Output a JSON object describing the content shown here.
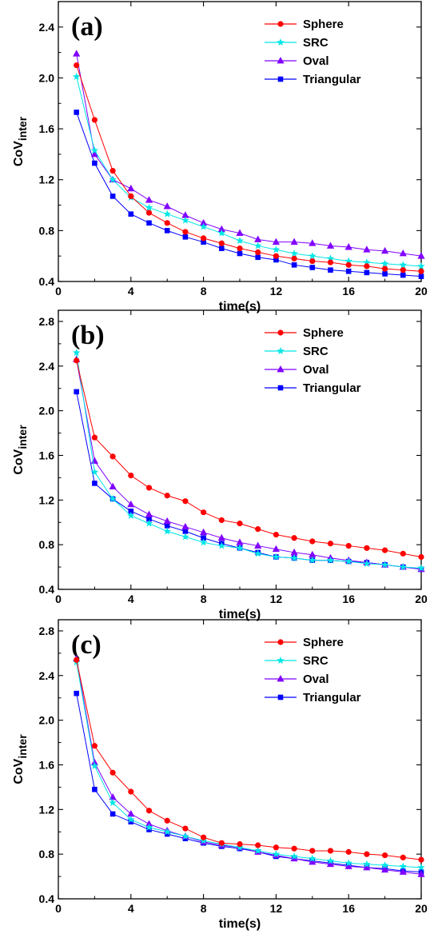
{
  "chart_data": [
    {
      "type": "line",
      "panel_label": "(a)",
      "xlabel": "time(s)",
      "ylabel_main": "CoV",
      "ylabel_sub": "inter",
      "xlim": [
        0,
        20
      ],
      "ylim": [
        0.4,
        2.6
      ],
      "xticks": [
        0,
        4,
        8,
        12,
        16,
        20
      ],
      "yticks": [
        0.4,
        0.8,
        1.2,
        1.6,
        2.0,
        2.4
      ],
      "xtick_labels": [
        "0",
        "4",
        "8",
        "12",
        "16",
        "20"
      ],
      "ytick_labels": [
        "0.4",
        "0.8",
        "1.2",
        "1.6",
        "2.0",
        "2.4"
      ],
      "legend_position": "top-right",
      "x": [
        1,
        2,
        3,
        4,
        5,
        6,
        7,
        8,
        9,
        10,
        11,
        12,
        13,
        14,
        15,
        16,
        17,
        18,
        19,
        20
      ],
      "series": [
        {
          "name": "Sphere",
          "color": "#ff0000",
          "marker": "circle",
          "values": [
            2.1,
            1.67,
            1.27,
            1.07,
            0.94,
            0.86,
            0.79,
            0.74,
            0.7,
            0.66,
            0.63,
            0.6,
            0.58,
            0.56,
            0.55,
            0.53,
            0.52,
            0.5,
            0.49,
            0.48
          ]
        },
        {
          "name": "SRC",
          "color": "#00e6e6",
          "marker": "star",
          "values": [
            2.01,
            1.43,
            1.2,
            1.06,
            0.98,
            0.93,
            0.88,
            0.83,
            0.78,
            0.72,
            0.68,
            0.65,
            0.62,
            0.6,
            0.58,
            0.56,
            0.55,
            0.54,
            0.53,
            0.52
          ]
        },
        {
          "name": "Oval",
          "color": "#8000ff",
          "marker": "triangle",
          "values": [
            2.19,
            1.4,
            1.2,
            1.13,
            1.04,
            0.99,
            0.92,
            0.86,
            0.81,
            0.78,
            0.73,
            0.71,
            0.71,
            0.7,
            0.68,
            0.67,
            0.65,
            0.64,
            0.62,
            0.6
          ]
        },
        {
          "name": "Triangular",
          "color": "#0000ff",
          "marker": "square",
          "values": [
            1.73,
            1.33,
            1.07,
            0.93,
            0.86,
            0.8,
            0.75,
            0.71,
            0.66,
            0.62,
            0.59,
            0.57,
            0.53,
            0.51,
            0.49,
            0.48,
            0.47,
            0.46,
            0.45,
            0.44
          ]
        }
      ]
    },
    {
      "type": "line",
      "panel_label": "(b)",
      "xlabel": "time(s)",
      "ylabel_main": "CoV",
      "ylabel_sub": "inter",
      "xlim": [
        0,
        20
      ],
      "ylim": [
        0.4,
        2.9
      ],
      "xticks": [
        0,
        4,
        8,
        12,
        16,
        20
      ],
      "yticks": [
        0.4,
        0.8,
        1.2,
        1.6,
        2.0,
        2.4,
        2.8
      ],
      "xtick_labels": [
        "0",
        "4",
        "8",
        "12",
        "16",
        "20"
      ],
      "ytick_labels": [
        "0.4",
        "0.8",
        "1.2",
        "1.6",
        "2.0",
        "2.4",
        "2.8"
      ],
      "legend_position": "top-right",
      "x": [
        1,
        2,
        3,
        4,
        5,
        6,
        7,
        8,
        9,
        10,
        11,
        12,
        13,
        14,
        15,
        16,
        17,
        18,
        19,
        20
      ],
      "series": [
        {
          "name": "Sphere",
          "color": "#ff0000",
          "marker": "circle",
          "values": [
            2.45,
            1.76,
            1.59,
            1.42,
            1.31,
            1.24,
            1.19,
            1.09,
            1.02,
            0.99,
            0.94,
            0.89,
            0.86,
            0.83,
            0.81,
            0.79,
            0.77,
            0.75,
            0.72,
            0.69
          ]
        },
        {
          "name": "SRC",
          "color": "#00e6e6",
          "marker": "star",
          "values": [
            2.52,
            1.45,
            1.21,
            1.06,
            0.99,
            0.92,
            0.87,
            0.82,
            0.79,
            0.77,
            0.72,
            0.69,
            0.68,
            0.66,
            0.66,
            0.65,
            0.63,
            0.62,
            0.6,
            0.59
          ]
        },
        {
          "name": "Oval",
          "color": "#8000ff",
          "marker": "triangle",
          "values": [
            2.46,
            1.55,
            1.32,
            1.16,
            1.07,
            1.01,
            0.96,
            0.91,
            0.86,
            0.82,
            0.79,
            0.76,
            0.73,
            0.71,
            0.68,
            0.66,
            0.64,
            0.62,
            0.6,
            0.58
          ]
        },
        {
          "name": "Triangular",
          "color": "#0000ff",
          "marker": "square",
          "values": [
            2.17,
            1.35,
            1.21,
            1.1,
            1.03,
            0.97,
            0.92,
            0.86,
            0.81,
            0.77,
            0.73,
            0.69,
            0.68,
            0.66,
            0.66,
            0.65,
            0.64,
            0.62,
            0.6,
            0.58
          ]
        }
      ]
    },
    {
      "type": "line",
      "panel_label": "(c)",
      "xlabel": "time(s)",
      "ylabel_main": "CoV",
      "ylabel_sub": "inter",
      "xlim": [
        0,
        20
      ],
      "ylim": [
        0.4,
        2.9
      ],
      "xticks": [
        0,
        4,
        8,
        12,
        16,
        20
      ],
      "yticks": [
        0.4,
        0.8,
        1.2,
        1.6,
        2.0,
        2.4,
        2.8
      ],
      "xtick_labels": [
        "0",
        "4",
        "8",
        "12",
        "16",
        "20"
      ],
      "ytick_labels": [
        "0.4",
        "0.8",
        "1.2",
        "1.6",
        "2.0",
        "2.4",
        "2.8"
      ],
      "legend_position": "top-right",
      "x": [
        1,
        2,
        3,
        4,
        5,
        6,
        7,
        8,
        9,
        10,
        11,
        12,
        13,
        14,
        15,
        16,
        17,
        18,
        19,
        20
      ],
      "series": [
        {
          "name": "Sphere",
          "color": "#ff0000",
          "marker": "circle",
          "values": [
            2.54,
            1.77,
            1.53,
            1.36,
            1.19,
            1.1,
            1.03,
            0.95,
            0.9,
            0.89,
            0.88,
            0.86,
            0.85,
            0.83,
            0.83,
            0.82,
            0.8,
            0.79,
            0.77,
            0.75
          ]
        },
        {
          "name": "SRC",
          "color": "#00e6e6",
          "marker": "star",
          "values": [
            2.52,
            1.59,
            1.26,
            1.11,
            1.04,
            1.0,
            0.96,
            0.92,
            0.89,
            0.86,
            0.83,
            0.8,
            0.78,
            0.76,
            0.74,
            0.72,
            0.71,
            0.7,
            0.69,
            0.68
          ]
        },
        {
          "name": "Oval",
          "color": "#8000ff",
          "marker": "triangle",
          "values": [
            2.55,
            1.62,
            1.31,
            1.16,
            1.07,
            1.01,
            0.96,
            0.91,
            0.88,
            0.86,
            0.82,
            0.79,
            0.76,
            0.73,
            0.71,
            0.69,
            0.68,
            0.66,
            0.64,
            0.62
          ]
        },
        {
          "name": "Triangular",
          "color": "#0000ff",
          "marker": "square",
          "values": [
            2.24,
            1.38,
            1.16,
            1.09,
            1.02,
            0.98,
            0.94,
            0.9,
            0.87,
            0.85,
            0.82,
            0.78,
            0.76,
            0.74,
            0.72,
            0.7,
            0.68,
            0.67,
            0.65,
            0.64
          ]
        }
      ]
    }
  ]
}
